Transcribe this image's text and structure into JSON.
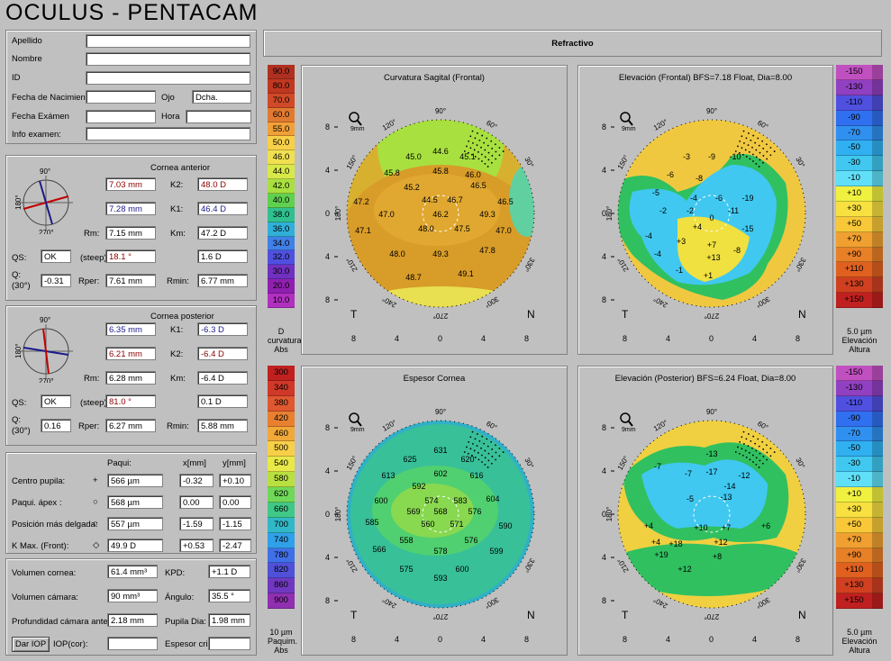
{
  "app": {
    "title": "OCULUS  -  PENTACAM"
  },
  "patient": {
    "apellido_label": "Apellido",
    "nombre_label": "Nombre",
    "id_label": "ID",
    "fecha_nac_label": "Fecha de Nacimiento",
    "ojo_label": "Ojo",
    "ojo_value": "Dcha.",
    "fecha_exam_label": "Fecha Exámen",
    "hora_label": "Hora",
    "info_label": "Info examen:"
  },
  "anterior": {
    "title": "Cornea anterior",
    "r1": "7.03 mm",
    "k2_label": "K2:",
    "k2": "48.0 D",
    "r2": "7.28 mm",
    "k1_label": "K1:",
    "k1": "46.4 D",
    "rm_label": "Rm:",
    "rm": "7.15 mm",
    "km_label": "Km:",
    "km": "47.2 D",
    "qs_label": "QS:",
    "qs": "OK",
    "steep_label": "(steep)",
    "axis": "18.1 °",
    "astig": "1.6 D",
    "q_label": "Q:",
    "q30_label": "(30°)",
    "q": "-0.31",
    "rper_label": "Rper:",
    "rper": "7.61 mm",
    "rmin_label": "Rmin:",
    "rmin": "6.77 mm"
  },
  "posterior": {
    "title": "Cornea posterior",
    "r1": "6.35 mm",
    "k1_label": "K1:",
    "k1": "-6.3 D",
    "r2": "6.21 mm",
    "k2_label": "K2:",
    "k2": "-6.4 D",
    "rm_label": "Rm:",
    "rm": "6.28 mm",
    "km_label": "Km:",
    "km": "-6.4 D",
    "qs_label": "QS:",
    "qs": "OK",
    "steep_label": "(steep)",
    "axis": "81.0 °",
    "astig": "0.1 D",
    "q_label": "Q:",
    "q30_label": "(30°)",
    "q": "0.16",
    "rper_label": "Rper:",
    "rper": "6.27 mm",
    "rmin_label": "Rmin:",
    "rmin": "5.88 mm"
  },
  "pachy": {
    "col_paqui": "Paqui:",
    "col_x": "x[mm]",
    "col_y": "y[mm]",
    "rows": [
      {
        "label": "Centro pupila:",
        "paqui": "566 µm",
        "x": "-0.32",
        "y": "+0.10"
      },
      {
        "label": "Paqui. ápex :",
        "paqui": "568 µm",
        "x": "0.00",
        "y": "0.00"
      },
      {
        "label": "Posición más delgada:",
        "paqui": "557 µm",
        "x": "-1.59",
        "y": "-1.15"
      },
      {
        "label": "K Max. (Front):",
        "paqui": "49.9 D",
        "x": "+0.53",
        "y": "-2.47"
      }
    ]
  },
  "volume": {
    "vol_cornea_label": "Volumen cornea:",
    "vol_cornea": "61.4 mm³",
    "kpd_label": "KPD:",
    "kpd": "+1.1 D",
    "vol_camara_label": "Volumen cámara:",
    "vol_camara": "90 mm³",
    "angulo_label": "Ángulo:",
    "angulo": "35.5 °",
    "prof_label": "Profundidad cámara anterior:",
    "prof": "2.18 mm",
    "pupila_label": "Pupila Dia:",
    "pupila": "1.98 mm",
    "dar_iop": "Dar IOP",
    "iop_label": "IOP(cor):",
    "espesor_label": "Espesor crist.:"
  },
  "refractivo": "Refractivo",
  "scales": {
    "curv": {
      "values": [
        "90.0",
        "80.0",
        "70.0",
        "60.0",
        "55.0",
        "50.0",
        "46.0",
        "44.0",
        "42.0",
        "40.0",
        "38.0",
        "36.0",
        "34.0",
        "32.0",
        "30.0",
        "20.0",
        "10.0"
      ],
      "foot1": "D",
      "foot2": "curvatura",
      "foot3": "Abs"
    },
    "elev": {
      "values": [
        "-150",
        "-130",
        "-110",
        "-90",
        "-70",
        "-50",
        "-30",
        "-10",
        "+10",
        "+30",
        "+50",
        "+70",
        "+90",
        "+110",
        "+130",
        "+150"
      ],
      "foot1": "5.0 µm",
      "foot2": "Elevación",
      "foot3": "Altura"
    },
    "pachy": {
      "values": [
        "300",
        "340",
        "380",
        "420",
        "460",
        "500",
        "540",
        "580",
        "620",
        "660",
        "700",
        "740",
        "780",
        "820",
        "860",
        "900"
      ],
      "foot1": "10 µm",
      "foot2": "Paquim.",
      "foot3": "Abs"
    },
    "elev2": {
      "values": [
        "-150",
        "-130",
        "-110",
        "-90",
        "-70",
        "-50",
        "-30",
        "-10",
        "+10",
        "+30",
        "+50",
        "+70",
        "+90",
        "+110",
        "+130",
        "+150"
      ],
      "foot1": "5.0 µm",
      "foot2": "Elevación",
      "foot3": "Altura"
    }
  },
  "maps": {
    "sag": {
      "title": "Curvatura Sagital (Frontal)",
      "values": [
        "44.6",
        "45.0",
        "45.1",
        "45.8",
        "45.8",
        "46.0",
        "45.2",
        "46.5",
        "47.2",
        "44.5",
        "46.7",
        "46.5",
        "47.0",
        "46.2",
        "49.3",
        "47.1",
        "48.0",
        "47.5",
        "47.0",
        "48.0",
        "49.3",
        "47.8",
        "48.7",
        "49.1"
      ]
    },
    "elevf": {
      "title": "Elevación (Frontal)  BFS=7.18 Float, Dia=8.00",
      "values": [
        "-3",
        "-9",
        "-10",
        "-6",
        "-8",
        "-5",
        "-4",
        "-6",
        "-19",
        "-2",
        "-2",
        "-11",
        "+4",
        "0",
        "-15",
        "-4",
        "+3",
        "+7",
        "-4",
        "+13",
        "-8",
        "-1",
        "+1"
      ]
    },
    "pachymap": {
      "title": "Espesor Cornea",
      "values": [
        "631",
        "625",
        "620",
        "613",
        "602",
        "616",
        "592",
        "600",
        "574",
        "583",
        "604",
        "569",
        "568",
        "576",
        "585",
        "560",
        "571",
        "590",
        "558",
        "566",
        "578",
        "576",
        "599",
        "575",
        "600",
        "593"
      ]
    },
    "elevb": {
      "title": "Elevación (Posterior)  BFS=6.24 Float, Dia=8.00",
      "values": [
        "-13",
        "-7",
        "-7",
        "-17",
        "-12",
        "-14",
        "-5",
        "-13",
        "+4",
        "+10",
        "+7",
        "+6",
        "+4",
        "+18",
        "+12",
        "+19",
        "+8",
        "+12"
      ]
    },
    "common": {
      "nasal": "N",
      "temporal": "T",
      "ang_90": "90°",
      "ang_60": "60°",
      "ang_30": "30°",
      "ang_120": "120°",
      "ang_150": "150°",
      "ang_180": "180°",
      "ang_210": "210°",
      "ang_240": "240°",
      "ang_270": "270°",
      "ang_300": "300°",
      "ang_330": "330°",
      "mag": "9mm",
      "ax_vals": [
        "8",
        "4",
        "0",
        "4",
        "8"
      ],
      "ay_vals": [
        "8",
        "4",
        "0",
        "4",
        "8"
      ]
    }
  },
  "colors": {
    "bg": "#c0c0c0"
  }
}
